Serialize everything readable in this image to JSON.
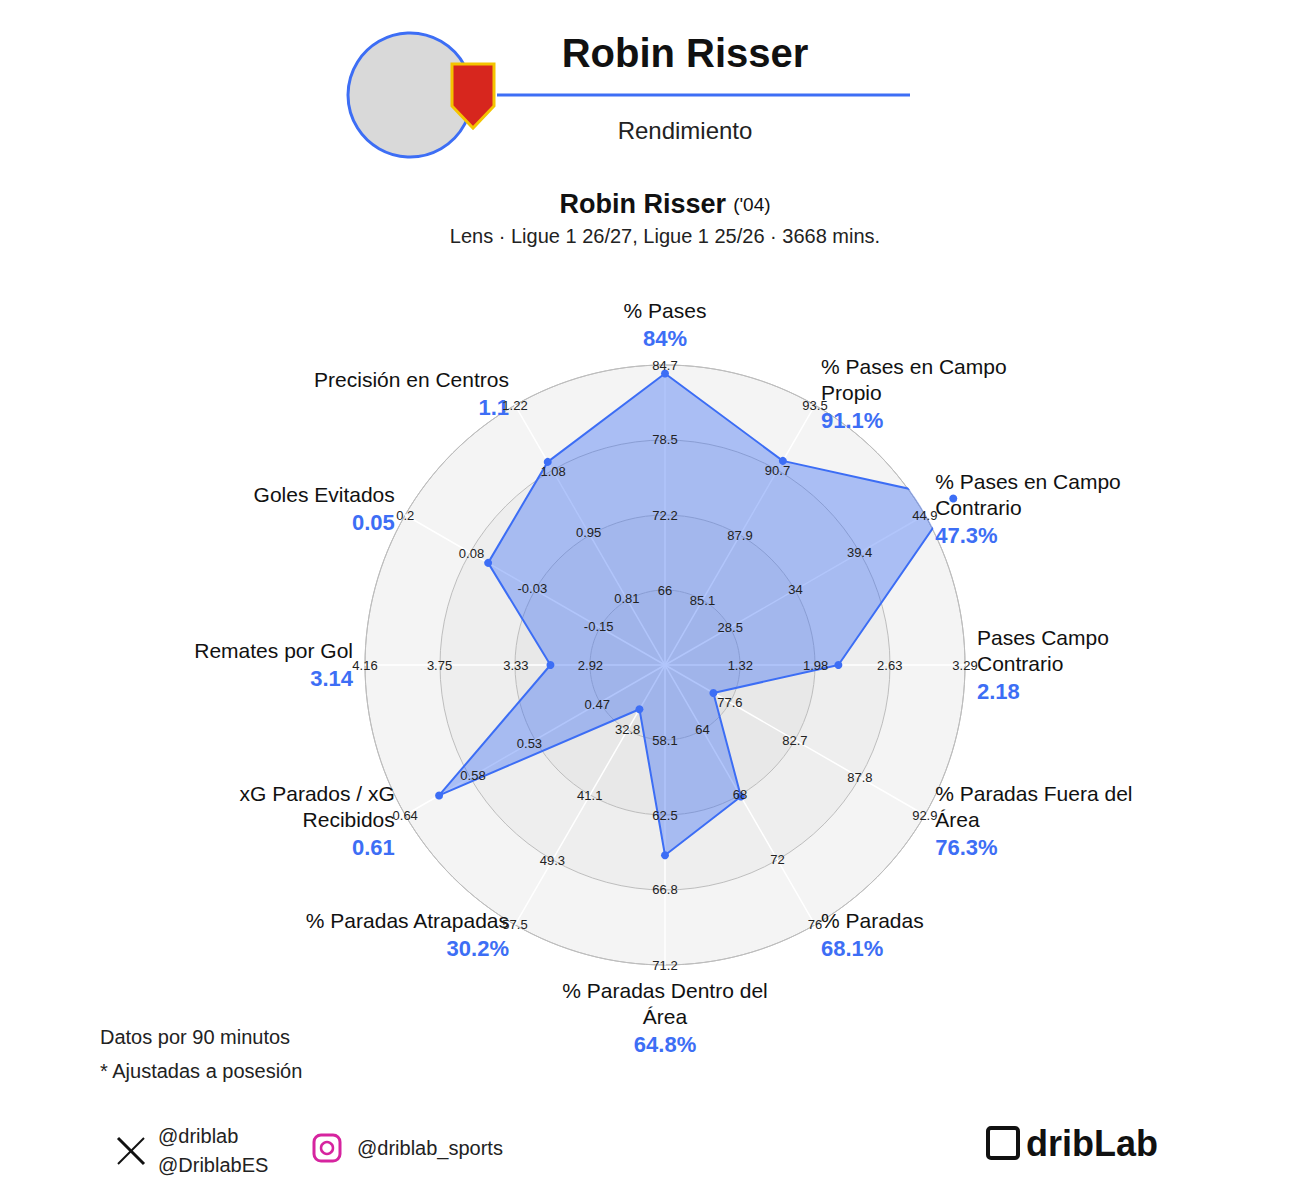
{
  "chart_data": {
    "type": "radar",
    "title": "Robin Risser",
    "subtitle": "Rendimiento",
    "player": "Robin Risser",
    "birth": "('04)",
    "details": "Lens · Ligue 1 26/27, Ligue 1 25/26 · 3668 mins.",
    "color": "#3d6ef5",
    "grid": true,
    "notes": [
      "Datos por 90 minutos",
      "* Ajustadas a posesión"
    ],
    "credits": {
      "x": [
        "@driblab",
        "@DriblabES"
      ],
      "instagram": "@driblab_sports"
    },
    "logo": "dribLab",
    "categories": [
      "% Pases",
      "Precisión en Centros",
      "Goles Evitados",
      "Remates por Gol",
      "xG Parados / xG Recibidos",
      "% Paradas Atrapadas",
      "% Paradas Dentro del Área",
      "% Paradas",
      "% Paradas Fuera del Área",
      "Pases Campo Contrario",
      "% Pases en Campo Contrario",
      "% Pases en Campo Propio"
    ],
    "values": [
      84,
      1.1,
      0.05,
      3.14,
      0.61,
      30.2,
      64.8,
      68.1,
      76.3,
      2.18,
      47.3,
      91.1
    ],
    "value_labels": [
      "84%",
      "1.1",
      "0.05",
      "3.14",
      "0.61",
      "30.2%",
      "64.8%",
      "68.1%",
      "76.3%",
      "2.18",
      "47.3%",
      "91.1%"
    ],
    "axes": [
      {
        "range": [
          59.8,
          84.7
        ],
        "ticks": [
          66,
          72.2,
          78.5,
          84.7
        ]
      },
      {
        "range": [
          0.67,
          1.22
        ],
        "ticks": [
          0.81,
          0.95,
          1.08,
          1.22
        ]
      },
      {
        "range": [
          -0.27,
          0.2
        ],
        "ticks": [
          -0.15,
          -0.03,
          0.08,
          0.2
        ]
      },
      {
        "range": [
          2.51,
          4.16
        ],
        "ticks": [
          2.92,
          3.33,
          3.75,
          4.16
        ]
      },
      {
        "range": [
          0.41,
          0.64
        ],
        "ticks": [
          0.47,
          0.53,
          0.58,
          0.64
        ]
      },
      {
        "range": [
          24.6,
          57.5
        ],
        "ticks": [
          32.8,
          41.1,
          49.3,
          57.5
        ]
      },
      {
        "range": [
          53.7,
          71.2
        ],
        "ticks": [
          58.1,
          62.5,
          66.8,
          71.2
        ]
      },
      {
        "range": [
          60,
          76
        ],
        "ticks": [
          64,
          68,
          72,
          76
        ]
      },
      {
        "range": [
          72.5,
          92.9
        ],
        "ticks": [
          77.6,
          82.7,
          87.8,
          92.9
        ]
      },
      {
        "range": [
          0.66,
          3.29
        ],
        "ticks": [
          1.32,
          1.98,
          2.63,
          3.29
        ]
      },
      {
        "range": [
          23,
          44.9
        ],
        "ticks": [
          28.5,
          34,
          39.4,
          44.9
        ]
      },
      {
        "range": [
          82.3,
          93.5
        ],
        "ticks": [
          85.1,
          87.9,
          90.7,
          93.5
        ]
      }
    ]
  }
}
